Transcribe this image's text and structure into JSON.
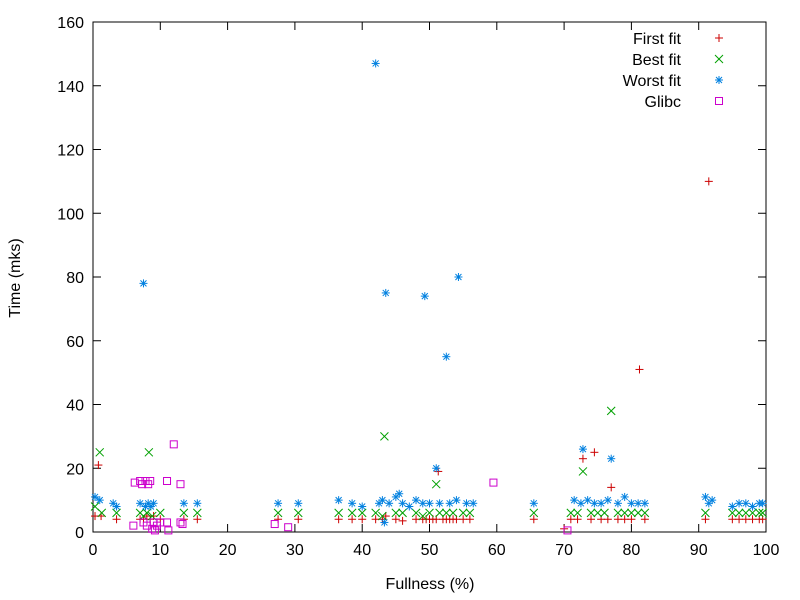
{
  "chart_data": {
    "type": "scatter",
    "xlabel": "Fullness (%)",
    "ylabel": "Time (mks)",
    "xlim": [
      0,
      100
    ],
    "ylim": [
      0,
      160
    ],
    "xticks": [
      0,
      10,
      20,
      30,
      40,
      50,
      60,
      70,
      80,
      90,
      100
    ],
    "yticks": [
      0,
      20,
      40,
      60,
      80,
      100,
      120,
      140,
      160
    ],
    "grid": false,
    "legend_position": "top-right",
    "series": [
      {
        "name": "First fit",
        "color": "#cc0000",
        "marker": "plus",
        "points": [
          [
            0.3,
            5
          ],
          [
            0.8,
            21
          ],
          [
            1.2,
            5
          ],
          [
            3.5,
            4
          ],
          [
            7,
            4
          ],
          [
            7.5,
            4
          ],
          [
            8,
            5
          ],
          [
            8.5,
            4
          ],
          [
            9,
            5
          ],
          [
            10,
            4
          ],
          [
            13.5,
            4
          ],
          [
            15.5,
            4
          ],
          [
            27.5,
            4
          ],
          [
            30.5,
            4
          ],
          [
            36.5,
            4
          ],
          [
            38.5,
            4
          ],
          [
            40,
            4
          ],
          [
            42,
            4
          ],
          [
            43,
            4
          ],
          [
            43.5,
            5
          ],
          [
            45,
            4
          ],
          [
            46,
            3.5
          ],
          [
            48,
            4
          ],
          [
            49,
            4
          ],
          [
            49.5,
            4
          ],
          [
            50,
            4
          ],
          [
            50.5,
            4
          ],
          [
            51,
            4
          ],
          [
            51.3,
            19
          ],
          [
            52,
            4
          ],
          [
            52.5,
            4
          ],
          [
            53,
            4
          ],
          [
            53.5,
            4
          ],
          [
            54,
            4
          ],
          [
            55,
            4
          ],
          [
            56,
            4
          ],
          [
            65.5,
            4
          ],
          [
            70,
            1
          ],
          [
            71,
            4
          ],
          [
            72,
            4
          ],
          [
            72.8,
            23
          ],
          [
            74,
            4
          ],
          [
            74.5,
            25
          ],
          [
            75.5,
            4
          ],
          [
            76.5,
            4
          ],
          [
            77,
            14
          ],
          [
            78,
            4
          ],
          [
            79,
            4
          ],
          [
            80,
            4
          ],
          [
            81.2,
            51
          ],
          [
            82,
            4
          ],
          [
            91,
            4
          ],
          [
            91.5,
            110
          ],
          [
            95,
            4
          ],
          [
            96,
            4
          ],
          [
            97,
            4
          ],
          [
            98,
            4
          ],
          [
            99,
            4
          ],
          [
            99.5,
            4
          ]
        ]
      },
      {
        "name": "Best fit",
        "color": "#00a000",
        "marker": "cross",
        "points": [
          [
            0.3,
            8
          ],
          [
            1,
            25
          ],
          [
            1.3,
            6
          ],
          [
            3.5,
            6
          ],
          [
            7,
            6
          ],
          [
            7.5,
            5
          ],
          [
            8,
            6
          ],
          [
            8.3,
            25
          ],
          [
            8.8,
            5
          ],
          [
            10,
            6
          ],
          [
            13.5,
            6
          ],
          [
            15.5,
            6
          ],
          [
            27.5,
            6
          ],
          [
            30.5,
            6
          ],
          [
            36.5,
            6
          ],
          [
            38.5,
            6
          ],
          [
            40,
            6
          ],
          [
            42,
            6
          ],
          [
            43,
            5
          ],
          [
            43.3,
            30
          ],
          [
            45,
            6
          ],
          [
            46,
            6
          ],
          [
            48,
            6
          ],
          [
            49,
            5
          ],
          [
            50,
            6
          ],
          [
            51,
            15
          ],
          [
            51.5,
            6
          ],
          [
            52.5,
            6
          ],
          [
            53.5,
            6
          ],
          [
            55,
            6
          ],
          [
            56,
            6
          ],
          [
            65.5,
            6
          ],
          [
            71,
            6
          ],
          [
            72,
            6
          ],
          [
            72.8,
            19
          ],
          [
            74,
            6
          ],
          [
            75,
            6
          ],
          [
            76,
            6
          ],
          [
            77,
            38
          ],
          [
            78,
            6
          ],
          [
            79,
            6
          ],
          [
            80,
            6
          ],
          [
            81,
            6
          ],
          [
            82,
            6
          ],
          [
            91,
            6
          ],
          [
            95,
            6
          ],
          [
            96,
            6
          ],
          [
            97,
            6
          ],
          [
            98,
            6
          ],
          [
            99,
            6
          ],
          [
            99.5,
            6
          ]
        ]
      },
      {
        "name": "Worst fit",
        "color": "#0080e0",
        "marker": "star",
        "points": [
          [
            0.3,
            11
          ],
          [
            1,
            10
          ],
          [
            3,
            9
          ],
          [
            3.5,
            8
          ],
          [
            7,
            9
          ],
          [
            7.5,
            78
          ],
          [
            7.8,
            8
          ],
          [
            8.2,
            9
          ],
          [
            8.6,
            8
          ],
          [
            9,
            9
          ],
          [
            13.5,
            9
          ],
          [
            15.5,
            9
          ],
          [
            27.5,
            9
          ],
          [
            30.5,
            9
          ],
          [
            36.5,
            10
          ],
          [
            38.5,
            9
          ],
          [
            40,
            8
          ],
          [
            42,
            147
          ],
          [
            42.5,
            9
          ],
          [
            43,
            10
          ],
          [
            43.3,
            3
          ],
          [
            43.5,
            75
          ],
          [
            44,
            9
          ],
          [
            45,
            11
          ],
          [
            45.5,
            12
          ],
          [
            46,
            9
          ],
          [
            47,
            8
          ],
          [
            48,
            10
          ],
          [
            49,
            9
          ],
          [
            49.3,
            74
          ],
          [
            50,
            9
          ],
          [
            51,
            20
          ],
          [
            51.5,
            9
          ],
          [
            52.5,
            55
          ],
          [
            53,
            9
          ],
          [
            54,
            10
          ],
          [
            54.3,
            80
          ],
          [
            55.5,
            9
          ],
          [
            56.5,
            9
          ],
          [
            65.5,
            9
          ],
          [
            71.5,
            10
          ],
          [
            72.5,
            9
          ],
          [
            72.8,
            26
          ],
          [
            73.5,
            10
          ],
          [
            74.5,
            9
          ],
          [
            75.5,
            9
          ],
          [
            76.5,
            10
          ],
          [
            77,
            23
          ],
          [
            78,
            9
          ],
          [
            79,
            11
          ],
          [
            80,
            9
          ],
          [
            81,
            9
          ],
          [
            82,
            9
          ],
          [
            91,
            11
          ],
          [
            91.5,
            9
          ],
          [
            92,
            10
          ],
          [
            95,
            8
          ],
          [
            96,
            9
          ],
          [
            97,
            9
          ],
          [
            98,
            8
          ],
          [
            99,
            9
          ],
          [
            99.5,
            9
          ]
        ]
      },
      {
        "name": "Glibc",
        "color": "#cc00cc",
        "marker": "square",
        "points": [
          [
            6,
            2
          ],
          [
            6.2,
            15.5
          ],
          [
            7,
            16
          ],
          [
            7.3,
            15
          ],
          [
            7.5,
            3
          ],
          [
            7.8,
            16
          ],
          [
            8,
            2
          ],
          [
            8.2,
            15
          ],
          [
            8.5,
            16
          ],
          [
            8.8,
            1
          ],
          [
            9,
            3
          ],
          [
            9.2,
            0.5
          ],
          [
            9.5,
            2
          ],
          [
            10,
            3
          ],
          [
            11,
            3
          ],
          [
            11,
            16
          ],
          [
            11.2,
            0.5
          ],
          [
            12,
            27.5
          ],
          [
            13,
            15
          ],
          [
            13,
            3
          ],
          [
            13.3,
            2.5
          ],
          [
            27,
            2.5
          ],
          [
            29,
            1.5
          ],
          [
            59.5,
            15.5
          ],
          [
            70.5,
            0.5
          ]
        ]
      }
    ]
  }
}
